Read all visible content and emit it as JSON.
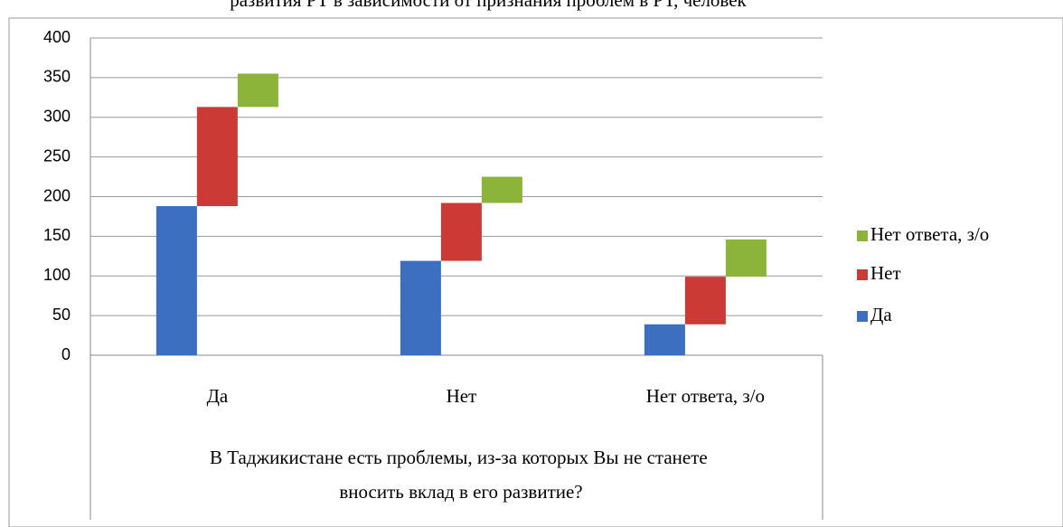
{
  "chart_data": {
    "type": "stacked_bar_offset",
    "title": "развития РТ в зависимости от признания проблем в РТ, человек",
    "xlabel": "В Таджикистане есть проблемы, из-за которых Вы не станете вносить вклад в его развитие?",
    "categories": [
      "Да",
      "Нет",
      "Нет ответа, з/о"
    ],
    "series": [
      {
        "name": "Да",
        "color": "#3d6fc0",
        "values": [
          188,
          119,
          39
        ]
      },
      {
        "name": "Нет",
        "color": "#cc3a35",
        "values": [
          125,
          73,
          60
        ]
      },
      {
        "name": "Нет ответа, з/о",
        "color": "#8cb43b",
        "values": [
          42,
          33,
          47
        ]
      }
    ],
    "ylim": [
      0,
      400
    ],
    "yticks": [
      0,
      50,
      100,
      150,
      200,
      250,
      300,
      350,
      400
    ],
    "grid": true,
    "legend": "right"
  }
}
